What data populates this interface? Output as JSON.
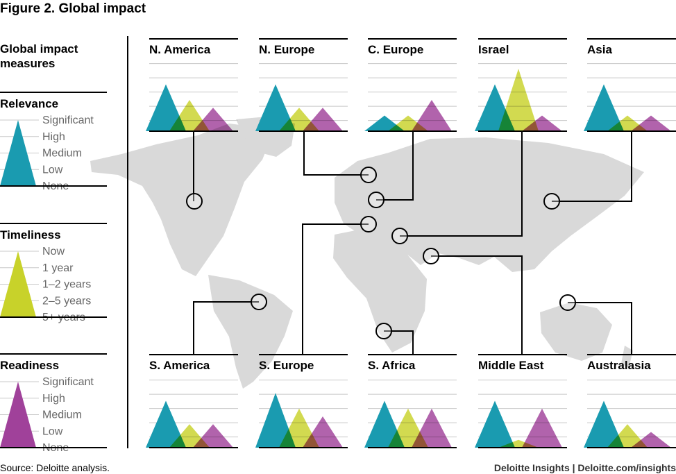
{
  "title": "Figure 2. Global impact",
  "legend": {
    "heading_line1": "Global impact",
    "heading_line2": "measures",
    "sections": [
      {
        "title": "Relevance",
        "levels": [
          "Significant",
          "High",
          "Medium",
          "Low",
          "None"
        ],
        "color": "#1a9bb0"
      },
      {
        "title": "Timeliness",
        "levels": [
          "Now",
          "1 year",
          "1–2 years",
          "2–5 years",
          "5+ years"
        ],
        "color": "#c8d22a"
      },
      {
        "title": "Readiness",
        "levels": [
          "Significant",
          "High",
          "Medium",
          "Low",
          "None"
        ],
        "color": "#a0419a"
      }
    ]
  },
  "colors": {
    "relevance": "#1a9bb0",
    "timeliness": "#c8d22a",
    "readiness": "#a0419a",
    "map": "#d9d9d9",
    "grid": "#c8c8c8"
  },
  "chart_data": {
    "type": "area",
    "scale": [
      "None",
      "Low",
      "Medium",
      "High",
      "Significant"
    ],
    "ylim": [
      0,
      4
    ],
    "series_names": [
      "Relevance",
      "Timeliness",
      "Readiness"
    ],
    "regions": [
      {
        "name": "N. America",
        "values": [
          3,
          2,
          1.5
        ]
      },
      {
        "name": "N. Europe",
        "values": [
          3,
          1.5,
          1.5
        ]
      },
      {
        "name": "C. Europe",
        "values": [
          1,
          1,
          2
        ]
      },
      {
        "name": "Israel",
        "values": [
          3,
          4,
          1
        ]
      },
      {
        "name": "Asia",
        "values": [
          3,
          1,
          1
        ]
      },
      {
        "name": "S. America",
        "values": [
          3,
          1.5,
          1.5
        ]
      },
      {
        "name": "S. Europe",
        "values": [
          3.5,
          2.5,
          2
        ]
      },
      {
        "name": "S. Africa",
        "values": [
          3,
          2.5,
          2.5
        ]
      },
      {
        "name": "Middle East",
        "values": [
          3,
          0.5,
          2.5
        ]
      },
      {
        "name": "Australasia",
        "values": [
          3,
          1.5,
          1
        ]
      }
    ]
  },
  "source": "Source: Deloitte analysis.",
  "brand": "Deloitte Insights | Deloitte.com/insights"
}
